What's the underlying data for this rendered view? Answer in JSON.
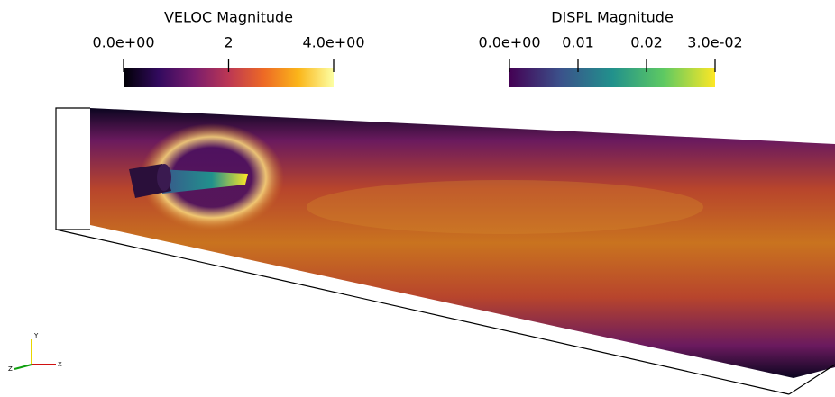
{
  "colorbars": [
    {
      "title": "VELOC Magnitude",
      "range": [
        0,
        4
      ],
      "ticks": [
        {
          "value": 0,
          "label": "0.0e+00"
        },
        2,
        {
          "value": 4,
          "label": "4.0e+00"
        }
      ],
      "colors": [
        "#000004",
        "#320a5e",
        "#781c6d",
        "#bc3754",
        "#ed6925",
        "#fbb61a",
        "#fcffa4"
      ]
    },
    {
      "title": "DISPL Magnitude",
      "range": [
        0,
        0.03
      ],
      "ticks": [
        {
          "value": 0,
          "label": "0.0e+00"
        },
        0.01,
        0.02,
        {
          "value": 0.03,
          "label": "3.0e-02"
        }
      ],
      "colors": [
        "#440154",
        "#3b528b",
        "#21918c",
        "#5ec962",
        "#fde725"
      ]
    }
  ],
  "axes_triad": {
    "x": "X",
    "y": "Y",
    "z": "Z"
  }
}
